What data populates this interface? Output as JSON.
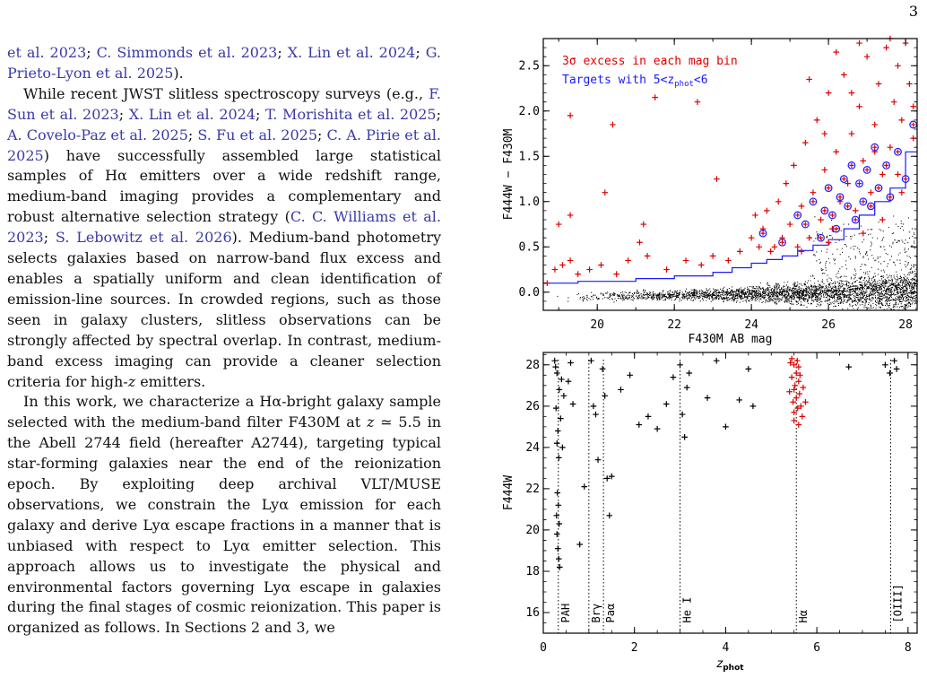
{
  "page": {
    "number": "3"
  },
  "text": {
    "p1": [
      "et al. 2023",
      "; ",
      "C. Simmonds et al. 2023",
      "; ",
      "X. Lin et al. 2024",
      "; ",
      "G. Prieto-Lyon et al. 2025",
      ")."
    ],
    "p2": [
      "While recent JWST slitless spectroscopy surveys (e.g., ",
      "F. Sun et al. 2023",
      "; ",
      "X. Lin et al. 2024",
      "; ",
      "T. Morishita et al. 2025",
      "; ",
      "A. Covelo-Paz et al. 2025",
      "; ",
      "S. Fu et al. 2025",
      "; ",
      "C. A. Pirie et al. 2025",
      ") have successfully assembled large statistical samples of Hα emitters over a wide redshift range, medium-band imaging provides a complementary and robust alternative selection strategy (",
      "C. C. Williams et al. 2023",
      "; ",
      "S. Lebowitz et al. 2026",
      "). Medium-band photometry selects galaxies based on narrow-band flux excess and enables a spatially uniform and clean identification of emission-line sources. In crowded regions, such as those seen in galaxy clusters, slitless observations can be strongly affected by spectral overlap. In contrast, medium-band excess imaging can provide a cleaner selection criteria for high-",
      "z",
      " emitters."
    ],
    "p3": [
      "In this work, we characterize a Hα-bright galaxy sample selected with the medium-band filter F430M at ",
      "z",
      " ≃ 5.5 in the Abell 2744 field (hereafter A2744), targeting typical star-forming galaxies near the end of the reionization epoch. By exploiting deep archival VLT/MUSE observations, we constrain the Lyα emission for each galaxy and derive Lyα escape fractions in a manner that is unbiased with respect to Lyα emitter selection. This approach allows us to investigate the physical and environmental factors governing Lyα escape in galaxies during the final stages of cosmic reionization. This paper is organized as follows. In Sections 2 and 3, we"
    ]
  },
  "colors": {
    "link": "#3a3aa6",
    "excess": "#e00000",
    "target": "#1a1aff",
    "threshold": "#1a1aff"
  },
  "chart_data": [
    {
      "type": "scatter",
      "xlabel": "F430M AB mag",
      "ylabel": "F444W − F430M",
      "xlim": [
        18.6,
        28.3
      ],
      "ylim": [
        -0.2,
        2.8
      ],
      "xticks": [
        "20",
        "22",
        "24",
        "26",
        "28"
      ],
      "yticks": [
        "0.0",
        "0.5",
        "1.0",
        "1.5",
        "2.0",
        "2.5"
      ],
      "legend": [
        "3σ excess in each mag bin",
        "Targets with 5<z_phot<6"
      ],
      "legend_placement": "top-left",
      "series": [
        {
          "name": "3σ excess in each mag bin",
          "marker": "plus",
          "color": "#e00000",
          "points": [
            [
              18.7,
              0.1
            ],
            [
              18.9,
              0.25
            ],
            [
              19.1,
              0.3
            ],
            [
              19.3,
              0.35
            ],
            [
              19.5,
              0.2
            ],
            [
              19.8,
              0.25
            ],
            [
              20.1,
              0.3
            ],
            [
              20.5,
              0.2
            ],
            [
              20.8,
              0.35
            ],
            [
              21.3,
              0.4
            ],
            [
              21.8,
              0.25
            ],
            [
              22.3,
              0.35
            ],
            [
              22.7,
              0.3
            ],
            [
              23.0,
              0.4
            ],
            [
              23.4,
              0.35
            ],
            [
              23.7,
              0.45
            ],
            [
              19.0,
              0.75
            ],
            [
              19.3,
              0.85
            ],
            [
              20.2,
              1.1
            ],
            [
              20.4,
              1.85
            ],
            [
              21.1,
              0.55
            ],
            [
              21.2,
              0.75
            ],
            [
              22.6,
              2.1
            ],
            [
              23.1,
              1.25
            ],
            [
              19.3,
              1.95
            ],
            [
              21.5,
              2.15
            ],
            [
              24.0,
              0.6
            ],
            [
              24.1,
              0.85
            ],
            [
              24.2,
              0.5
            ],
            [
              24.3,
              0.7
            ],
            [
              24.4,
              0.9
            ],
            [
              24.6,
              0.5
            ],
            [
              24.7,
              1.0
            ],
            [
              24.8,
              0.6
            ],
            [
              24.9,
              1.2
            ],
            [
              25.0,
              0.75
            ],
            [
              25.1,
              1.4
            ],
            [
              25.2,
              0.5
            ],
            [
              25.3,
              0.95
            ],
            [
              25.4,
              1.65
            ],
            [
              25.5,
              0.6
            ],
            [
              25.6,
              1.1
            ],
            [
              25.7,
              1.9
            ],
            [
              25.8,
              0.8
            ],
            [
              25.9,
              1.35
            ],
            [
              26.0,
              2.2
            ],
            [
              26.1,
              0.7
            ],
            [
              26.2,
              1.55
            ],
            [
              26.3,
              1.0
            ],
            [
              26.4,
              2.4
            ],
            [
              26.5,
              1.2
            ],
            [
              26.6,
              1.75
            ],
            [
              26.7,
              0.9
            ],
            [
              26.8,
              2.05
            ],
            [
              26.9,
              1.45
            ],
            [
              27.0,
              2.6
            ],
            [
              27.1,
              1.1
            ],
            [
              27.2,
              1.85
            ],
            [
              27.3,
              2.3
            ],
            [
              27.4,
              1.3
            ],
            [
              27.5,
              2.7
            ],
            [
              27.6,
              1.6
            ],
            [
              27.7,
              2.1
            ],
            [
              27.8,
              2.5
            ],
            [
              27.9,
              1.9
            ],
            [
              28.0,
              2.75
            ],
            [
              28.1,
              2.3
            ],
            [
              28.2,
              1.7
            ],
            [
              24.5,
              0.45
            ],
            [
              25.3,
              0.45
            ],
            [
              26.0,
              0.55
            ],
            [
              26.9,
              0.65
            ],
            [
              27.4,
              0.8
            ],
            [
              27.9,
              1.1
            ],
            [
              25.5,
              2.35
            ],
            [
              26.2,
              2.65
            ],
            [
              26.8,
              2.75
            ],
            [
              27.6,
              2.8
            ],
            [
              25.9,
              1.75
            ],
            [
              26.6,
              2.2
            ],
            [
              27.2,
              1.55
            ],
            [
              27.8,
              1.3
            ],
            [
              28.2,
              2.05
            ]
          ]
        },
        {
          "name": "Targets with 5<z_phot<6",
          "marker": "circle",
          "color": "#1a1aff",
          "points": [
            [
              24.3,
              0.65
            ],
            [
              24.8,
              0.55
            ],
            [
              25.2,
              0.85
            ],
            [
              25.4,
              0.75
            ],
            [
              25.6,
              1.0
            ],
            [
              25.8,
              0.6
            ],
            [
              25.9,
              0.9
            ],
            [
              26.0,
              1.15
            ],
            [
              26.1,
              0.85
            ],
            [
              26.2,
              0.7
            ],
            [
              26.3,
              1.05
            ],
            [
              26.4,
              1.25
            ],
            [
              26.5,
              0.95
            ],
            [
              26.6,
              1.4
            ],
            [
              26.7,
              0.8
            ],
            [
              26.8,
              1.2
            ],
            [
              26.9,
              1.0
            ],
            [
              27.0,
              1.35
            ],
            [
              27.1,
              0.95
            ],
            [
              27.2,
              1.6
            ],
            [
              27.3,
              1.15
            ],
            [
              27.5,
              1.4
            ],
            [
              27.6,
              1.05
            ],
            [
              27.8,
              1.55
            ],
            [
              28.0,
              1.25
            ],
            [
              28.2,
              1.85
            ]
          ]
        },
        {
          "name": "",
          "type": "step",
          "color": "#1a1aff",
          "points": [
            [
              18.6,
              0.1
            ],
            [
              19.5,
              0.1
            ],
            [
              19.5,
              0.12
            ],
            [
              21.0,
              0.12
            ],
            [
              21.0,
              0.15
            ],
            [
              22.0,
              0.15
            ],
            [
              22.0,
              0.18
            ],
            [
              23.0,
              0.18
            ],
            [
              23.0,
              0.22
            ],
            [
              23.5,
              0.22
            ],
            [
              23.5,
              0.27
            ],
            [
              24.0,
              0.27
            ],
            [
              24.0,
              0.32
            ],
            [
              24.4,
              0.32
            ],
            [
              24.4,
              0.36
            ],
            [
              24.8,
              0.36
            ],
            [
              24.8,
              0.4
            ],
            [
              25.2,
              0.4
            ],
            [
              25.2,
              0.46
            ],
            [
              25.6,
              0.46
            ],
            [
              25.6,
              0.52
            ],
            [
              26.0,
              0.52
            ],
            [
              26.0,
              0.58
            ],
            [
              26.4,
              0.58
            ],
            [
              26.4,
              0.7
            ],
            [
              26.8,
              0.7
            ],
            [
              26.8,
              0.85
            ],
            [
              27.2,
              0.85
            ],
            [
              27.2,
              1.0
            ],
            [
              27.6,
              1.0
            ],
            [
              27.6,
              1.15
            ],
            [
              28.0,
              1.15
            ],
            [
              28.0,
              1.55
            ],
            [
              28.3,
              1.55
            ]
          ]
        }
      ]
    },
    {
      "type": "scatter",
      "xlabel": "z_phot",
      "ylabel": "F444W",
      "xlim": [
        0,
        8.2
      ],
      "ylim": [
        15,
        28.6
      ],
      "xticks": [
        "0",
        "2",
        "4",
        "6",
        "8"
      ],
      "yticks": [
        "16",
        "18",
        "20",
        "22",
        "24",
        "26",
        "28"
      ],
      "lines": [
        {
          "label": "PAH",
          "x": 0.33
        },
        {
          "label": "Brγ",
          "x": 1.0
        },
        {
          "label": "Paα",
          "x": 1.32
        },
        {
          "label": "He I",
          "x": 3.0
        },
        {
          "label": "Hα",
          "x": 5.55
        },
        {
          "label": "[OIII]",
          "x": 7.62
        }
      ],
      "series": [
        {
          "name": "",
          "marker": "plus",
          "color": "#000000",
          "points": [
            [
              0.25,
              28.2
            ],
            [
              0.3,
              27.6
            ],
            [
              0.35,
              26.8
            ],
            [
              0.28,
              25.9
            ],
            [
              0.32,
              24.8
            ],
            [
              0.3,
              24.2
            ],
            [
              0.34,
              23.5
            ],
            [
              0.31,
              21.8
            ],
            [
              0.33,
              21.2
            ],
            [
              0.29,
              20.7
            ],
            [
              0.35,
              20.3
            ],
            [
              0.3,
              19.8
            ],
            [
              0.32,
              19.1
            ],
            [
              0.34,
              18.6
            ],
            [
              0.36,
              18.2
            ],
            [
              0.4,
              27.3
            ],
            [
              0.45,
              26.5
            ],
            [
              0.38,
              25.4
            ],
            [
              0.42,
              24.0
            ],
            [
              0.27,
              27.9
            ],
            [
              0.55,
              27.2
            ],
            [
              0.6,
              28.1
            ],
            [
              0.65,
              26.1
            ],
            [
              0.8,
              19.3
            ],
            [
              0.9,
              22.1
            ],
            [
              1.05,
              28.2
            ],
            [
              1.1,
              26.0
            ],
            [
              1.15,
              25.6
            ],
            [
              1.2,
              23.4
            ],
            [
              1.3,
              27.8
            ],
            [
              1.35,
              26.5
            ],
            [
              1.4,
              22.5
            ],
            [
              1.45,
              20.7
            ],
            [
              1.5,
              22.6
            ],
            [
              1.7,
              26.8
            ],
            [
              1.9,
              27.5
            ],
            [
              2.1,
              25.1
            ],
            [
              2.3,
              25.5
            ],
            [
              2.5,
              24.9
            ],
            [
              2.7,
              26.1
            ],
            [
              2.85,
              27.4
            ],
            [
              3.0,
              28.0
            ],
            [
              3.05,
              25.6
            ],
            [
              3.1,
              24.5
            ],
            [
              3.15,
              26.9
            ],
            [
              3.2,
              27.6
            ],
            [
              3.6,
              26.4
            ],
            [
              3.8,
              28.2
            ],
            [
              4.0,
              25.0
            ],
            [
              4.3,
              26.3
            ],
            [
              4.5,
              27.8
            ],
            [
              4.6,
              26.0
            ],
            [
              6.7,
              27.9
            ],
            [
              7.5,
              28.0
            ],
            [
              7.6,
              27.6
            ],
            [
              7.7,
              28.2
            ],
            [
              7.75,
              27.8
            ]
          ]
        },
        {
          "name": "",
          "marker": "plus",
          "color": "#e00000",
          "points": [
            [
              5.45,
              28.3
            ],
            [
              5.5,
              28.0
            ],
            [
              5.55,
              27.6
            ],
            [
              5.6,
              27.2
            ],
            [
              5.5,
              26.8
            ],
            [
              5.55,
              26.4
            ],
            [
              5.65,
              26.0
            ],
            [
              5.5,
              25.7
            ],
            [
              5.6,
              27.9
            ],
            [
              5.45,
              27.4
            ],
            [
              5.62,
              26.6
            ],
            [
              5.58,
              25.9
            ],
            [
              5.48,
              26.2
            ],
            [
              5.52,
              27.0
            ],
            [
              5.68,
              25.5
            ],
            [
              5.7,
              26.9
            ],
            [
              5.42,
              28.1
            ],
            [
              5.57,
              28.2
            ],
            [
              5.63,
              27.5
            ],
            [
              5.5,
              25.3
            ],
            [
              5.75,
              26.2
            ],
            [
              5.4,
              26.7
            ],
            [
              5.6,
              25.1
            ]
          ]
        }
      ]
    }
  ]
}
